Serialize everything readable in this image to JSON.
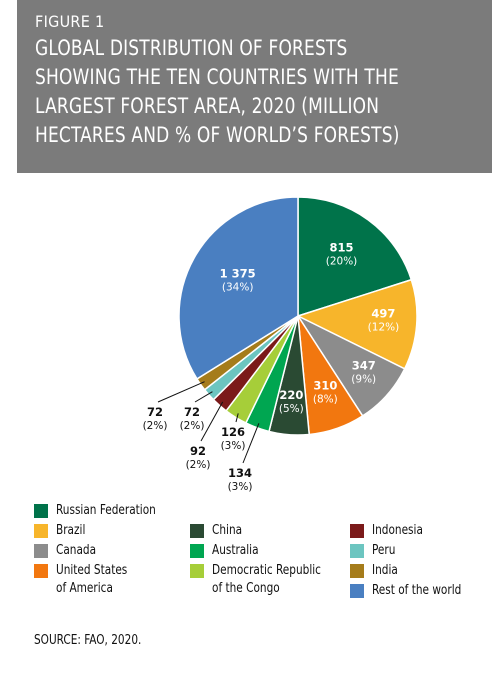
{
  "figure": {
    "label": "FIGURE 1",
    "title": "GLOBAL DISTRIBUTION OF FORESTS SHOWING THE TEN COUNTRIES WITH THE LARGEST FOREST AREA, 2020 (MILLION HECTARES AND % OF WORLD’S FORESTS)"
  },
  "chart_data": {
    "type": "pie",
    "title": "",
    "start_angle_deg": 0,
    "direction": "clockwise",
    "slices": [
      {
        "name": "Russian Federation",
        "value": 815,
        "value_label": "815",
        "pct_label": "(20%)",
        "color": "#00734a",
        "label_color": "#ffffff"
      },
      {
        "name": "Brazil",
        "value": 497,
        "value_label": "497",
        "pct_label": "(12%)",
        "color": "#f7b52b",
        "label_color": "#ffffff"
      },
      {
        "name": "Canada",
        "value": 347,
        "value_label": "347",
        "pct_label": "(9%)",
        "color": "#8c8c8c",
        "label_color": "#ffffff"
      },
      {
        "name": "United States of America",
        "value": 310,
        "value_label": "310",
        "pct_label": "(8%)",
        "color": "#f2770f",
        "label_color": "#ffffff"
      },
      {
        "name": "China",
        "value": 220,
        "value_label": "220",
        "pct_label": "(5%)",
        "color": "#2a4a33",
        "label_color": "#ffffff"
      },
      {
        "name": "Australia",
        "value": 134,
        "value_label": "134",
        "pct_label": "(3%)",
        "color": "#00a651",
        "label_color": "#111111"
      },
      {
        "name": "Democratic Republic of the Congo",
        "value": 126,
        "value_label": "126",
        "pct_label": "(3%)",
        "color": "#a6ce39",
        "label_color": "#111111"
      },
      {
        "name": "Indonesia",
        "value": 92,
        "value_label": "92",
        "pct_label": "(2%)",
        "color": "#7b1a1a",
        "label_color": "#111111"
      },
      {
        "name": "Peru",
        "value": 72,
        "value_label": "72",
        "pct_label": "(2%)",
        "color": "#6cc5c0",
        "label_color": "#111111"
      },
      {
        "name": "India",
        "value": 72,
        "value_label": "72",
        "pct_label": "(2%)",
        "color": "#a57c1b",
        "label_color": "#111111"
      },
      {
        "name": "Rest of the world",
        "value": 1375,
        "value_label": "1 375",
        "pct_label": "(34%)",
        "color": "#4a7fc1",
        "label_color": "#ffffff"
      }
    ]
  },
  "legend": {
    "items": [
      {
        "label": "Russian Federation",
        "color": "#00734a"
      },
      {
        "label": "Brazil",
        "color": "#f7b52b"
      },
      {
        "label": "Canada",
        "color": "#8c8c8c"
      },
      {
        "label": "United States\nof America",
        "color": "#f2770f"
      },
      {
        "label": "China",
        "color": "#2a4a33"
      },
      {
        "label": "Australia",
        "color": "#00a651"
      },
      {
        "label": "Democratic Republic\nof the Congo",
        "color": "#a6ce39"
      },
      {
        "label": "Indonesia",
        "color": "#7b1a1a"
      },
      {
        "label": "Peru",
        "color": "#6cc5c0"
      },
      {
        "label": "India",
        "color": "#a57c1b"
      },
      {
        "label": "Rest of the world",
        "color": "#4a7fc1"
      }
    ]
  },
  "source": "SOURCE: FAO, 2020."
}
